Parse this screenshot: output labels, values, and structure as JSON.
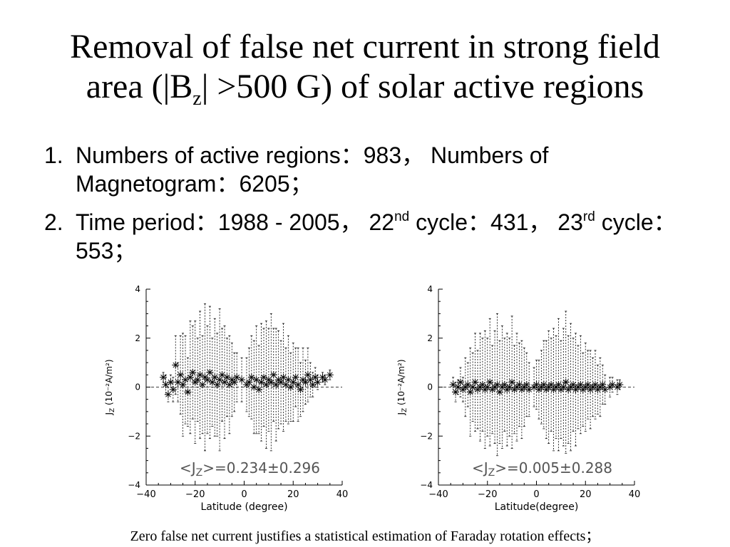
{
  "slide": {
    "title_line1": "Removal of false net current in strong field",
    "title_line2_pre": "area (|B",
    "title_line2_sub": "z",
    "title_line2_post": "| >500 G) of solar active regions",
    "bullets": [
      {
        "num": "1.",
        "parts": [
          {
            "t": "Numbers of active regions：983， Numbers of Magnetogram：6205；"
          }
        ]
      },
      {
        "num": "2.",
        "parts": [
          {
            "t": "Time period：1988 - 2005， 22"
          },
          {
            "sup": "nd"
          },
          {
            "t": " cycle：431， 23"
          },
          {
            "sup": "rd"
          },
          {
            "t": " cycle：553；"
          }
        ]
      }
    ],
    "caption": "Zero false net current justifies a statistical estimation of Faraday rotation effects；"
  },
  "chart_data": [
    {
      "type": "scatter",
      "title": "",
      "xlabel": "Latitude (degree)",
      "ylabel": "J",
      "ylabel_sub": "Z",
      "ylabel_unit": " (10⁻²A/m²)",
      "xlim": [
        -40,
        40
      ],
      "ylim": [
        -4,
        4
      ],
      "xticks": [
        -40,
        -20,
        0,
        20,
        40
      ],
      "yticks": [
        -4,
        -2,
        0,
        2,
        4
      ],
      "xtick_labels": [
        "−40",
        "−20",
        "0",
        "20",
        "40"
      ],
      "ytick_labels": [
        "−4",
        "−2",
        "0",
        "2",
        "4"
      ],
      "annotation_pre": "<J",
      "annotation_sub": "Z",
      "annotation_post": ">=0.234±0.296",
      "mean": 0.234,
      "error": 0.296,
      "points": [
        [
          -33,
          0.4,
          0.2
        ],
        [
          -32,
          0.1,
          0.4
        ],
        [
          -31,
          -0.3,
          0.3
        ],
        [
          -30,
          0.2,
          0.3
        ],
        [
          -29,
          -0.1,
          0.5
        ],
        [
          -28,
          0.9,
          1.2
        ],
        [
          -27,
          0.2,
          0.8
        ],
        [
          -26,
          0.5,
          1.6
        ],
        [
          -25,
          0.1,
          2.1
        ],
        [
          -24,
          0.3,
          1.8
        ],
        [
          -23,
          -0.2,
          1.4
        ],
        [
          -22,
          0.4,
          2.3
        ],
        [
          -21,
          0.6,
          1.9
        ],
        [
          -20,
          0.2,
          2.5
        ],
        [
          -19,
          0.3,
          1.7
        ],
        [
          -18,
          0.5,
          2.6
        ],
        [
          -17,
          0.1,
          2.0
        ],
        [
          -16,
          0.4,
          3.0
        ],
        [
          -15,
          0.3,
          2.2
        ],
        [
          -14,
          0.6,
          2.7
        ],
        [
          -13,
          0.2,
          1.8
        ],
        [
          -12,
          0.4,
          2.4
        ],
        [
          -11,
          0.1,
          2.1
        ],
        [
          -10,
          0.3,
          2.9
        ],
        [
          -9,
          0.5,
          1.9
        ],
        [
          -8,
          0.2,
          2.3
        ],
        [
          -7,
          0.4,
          1.6
        ],
        [
          -6,
          0.1,
          2.0
        ],
        [
          -5,
          0.3,
          1.5
        ],
        [
          -4,
          0.2,
          1.2
        ],
        [
          -3,
          0.4,
          1.0
        ],
        [
          -1,
          0.3,
          0.9
        ],
        [
          1,
          0.1,
          1.1
        ],
        [
          2,
          0.2,
          1.4
        ],
        [
          3,
          0.4,
          1.7
        ],
        [
          4,
          0.0,
          1.9
        ],
        [
          5,
          0.3,
          2.2
        ],
        [
          6,
          -0.1,
          1.8
        ],
        [
          7,
          0.2,
          2.4
        ],
        [
          8,
          0.4,
          2.0
        ],
        [
          9,
          0.1,
          2.6
        ],
        [
          10,
          0.3,
          2.1
        ],
        [
          11,
          0.2,
          2.8
        ],
        [
          12,
          0.5,
          1.9
        ],
        [
          13,
          0.1,
          2.3
        ],
        [
          14,
          0.3,
          2.0
        ],
        [
          15,
          0.2,
          1.7
        ],
        [
          16,
          0.4,
          2.2
        ],
        [
          17,
          0.1,
          1.5
        ],
        [
          18,
          0.3,
          1.8
        ],
        [
          19,
          0.0,
          1.4
        ],
        [
          20,
          0.2,
          1.6
        ],
        [
          21,
          0.4,
          1.2
        ],
        [
          22,
          0.1,
          1.5
        ],
        [
          23,
          -0.1,
          1.1
        ],
        [
          24,
          0.3,
          1.3
        ],
        [
          25,
          0.2,
          0.9
        ],
        [
          26,
          0.5,
          1.1
        ],
        [
          27,
          0.3,
          0.7
        ],
        [
          28,
          0.1,
          0.5
        ],
        [
          29,
          0.4,
          0.4
        ],
        [
          30,
          0.2,
          0.3
        ],
        [
          32,
          0.4,
          0.2
        ],
        [
          33,
          0.3,
          0.2
        ],
        [
          35,
          0.5,
          0.2
        ]
      ]
    },
    {
      "type": "scatter",
      "title": "",
      "xlabel": "Latitude(degree)",
      "ylabel": "J",
      "ylabel_sub": "Z",
      "ylabel_unit": " (10⁻²A/m²)",
      "xlim": [
        -40,
        40
      ],
      "ylim": [
        -4,
        4
      ],
      "xticks": [
        -40,
        -20,
        0,
        20,
        40
      ],
      "yticks": [
        -4,
        -2,
        0,
        2,
        4
      ],
      "xtick_labels": [
        "−40",
        "−20",
        "0",
        "20",
        "40"
      ],
      "ytick_labels": [
        "−4",
        "−2",
        "0",
        "2",
        "4"
      ],
      "annotation_pre": "<J",
      "annotation_sub": "Z",
      "annotation_post": ">=0.005±0.288",
      "mean": 0.005,
      "error": 0.288,
      "points": [
        [
          -34,
          0.1,
          0.3
        ],
        [
          -33,
          -0.2,
          0.4
        ],
        [
          -32,
          0.0,
          0.3
        ],
        [
          -31,
          0.2,
          0.6
        ],
        [
          -30,
          -0.1,
          0.5
        ],
        [
          -29,
          0.0,
          1.2
        ],
        [
          -28,
          0.1,
          0.9
        ],
        [
          -27,
          -0.2,
          1.8
        ],
        [
          -26,
          0.0,
          1.4
        ],
        [
          -25,
          0.2,
          2.0
        ],
        [
          -24,
          -0.1,
          1.6
        ],
        [
          -23,
          0.0,
          2.2
        ],
        [
          -22,
          0.1,
          1.9
        ],
        [
          -21,
          -0.1,
          2.4
        ],
        [
          -20,
          0.0,
          2.0
        ],
        [
          -19,
          0.2,
          2.6
        ],
        [
          -18,
          -0.1,
          1.8
        ],
        [
          -17,
          0.0,
          2.3
        ],
        [
          -16,
          0.1,
          2.9
        ],
        [
          -15,
          -0.2,
          2.1
        ],
        [
          -14,
          0.0,
          2.5
        ],
        [
          -13,
          0.1,
          1.9
        ],
        [
          -12,
          -0.1,
          2.3
        ],
        [
          -11,
          0.0,
          2.0
        ],
        [
          -10,
          0.2,
          2.7
        ],
        [
          -9,
          -0.1,
          1.8
        ],
        [
          -8,
          0.0,
          2.2
        ],
        [
          -7,
          0.1,
          1.7
        ],
        [
          -6,
          -0.1,
          2.0
        ],
        [
          -5,
          0.0,
          1.6
        ],
        [
          -4,
          0.1,
          1.3
        ],
        [
          -3,
          -0.1,
          1.1
        ],
        [
          -1,
          0.0,
          0.8
        ],
        [
          0,
          0.1,
          1.0
        ],
        [
          1,
          -0.1,
          1.2
        ],
        [
          2,
          0.0,
          1.5
        ],
        [
          3,
          0.1,
          1.8
        ],
        [
          4,
          -0.1,
          2.0
        ],
        [
          5,
          0.0,
          2.3
        ],
        [
          6,
          0.1,
          1.9
        ],
        [
          7,
          -0.1,
          2.5
        ],
        [
          8,
          0.0,
          2.1
        ],
        [
          9,
          0.1,
          2.7
        ],
        [
          10,
          -0.1,
          2.0
        ],
        [
          11,
          0.0,
          2.4
        ],
        [
          12,
          0.2,
          2.9
        ],
        [
          13,
          -0.1,
          2.2
        ],
        [
          14,
          0.0,
          2.6
        ],
        [
          15,
          0.1,
          1.9
        ],
        [
          16,
          -0.1,
          2.3
        ],
        [
          17,
          0.0,
          1.7
        ],
        [
          18,
          0.1,
          2.0
        ],
        [
          19,
          -0.1,
          1.5
        ],
        [
          20,
          0.0,
          1.8
        ],
        [
          21,
          0.1,
          1.4
        ],
        [
          22,
          -0.1,
          1.6
        ],
        [
          23,
          0.0,
          1.2
        ],
        [
          24,
          0.1,
          1.4
        ],
        [
          25,
          -0.1,
          1.0
        ],
        [
          26,
          0.0,
          1.2
        ],
        [
          27,
          0.1,
          0.8
        ],
        [
          28,
          -0.1,
          0.6
        ],
        [
          30,
          0.0,
          0.4
        ],
        [
          31,
          0.1,
          0.3
        ],
        [
          33,
          0.0,
          0.3
        ],
        [
          34,
          0.1,
          0.2
        ]
      ]
    }
  ]
}
